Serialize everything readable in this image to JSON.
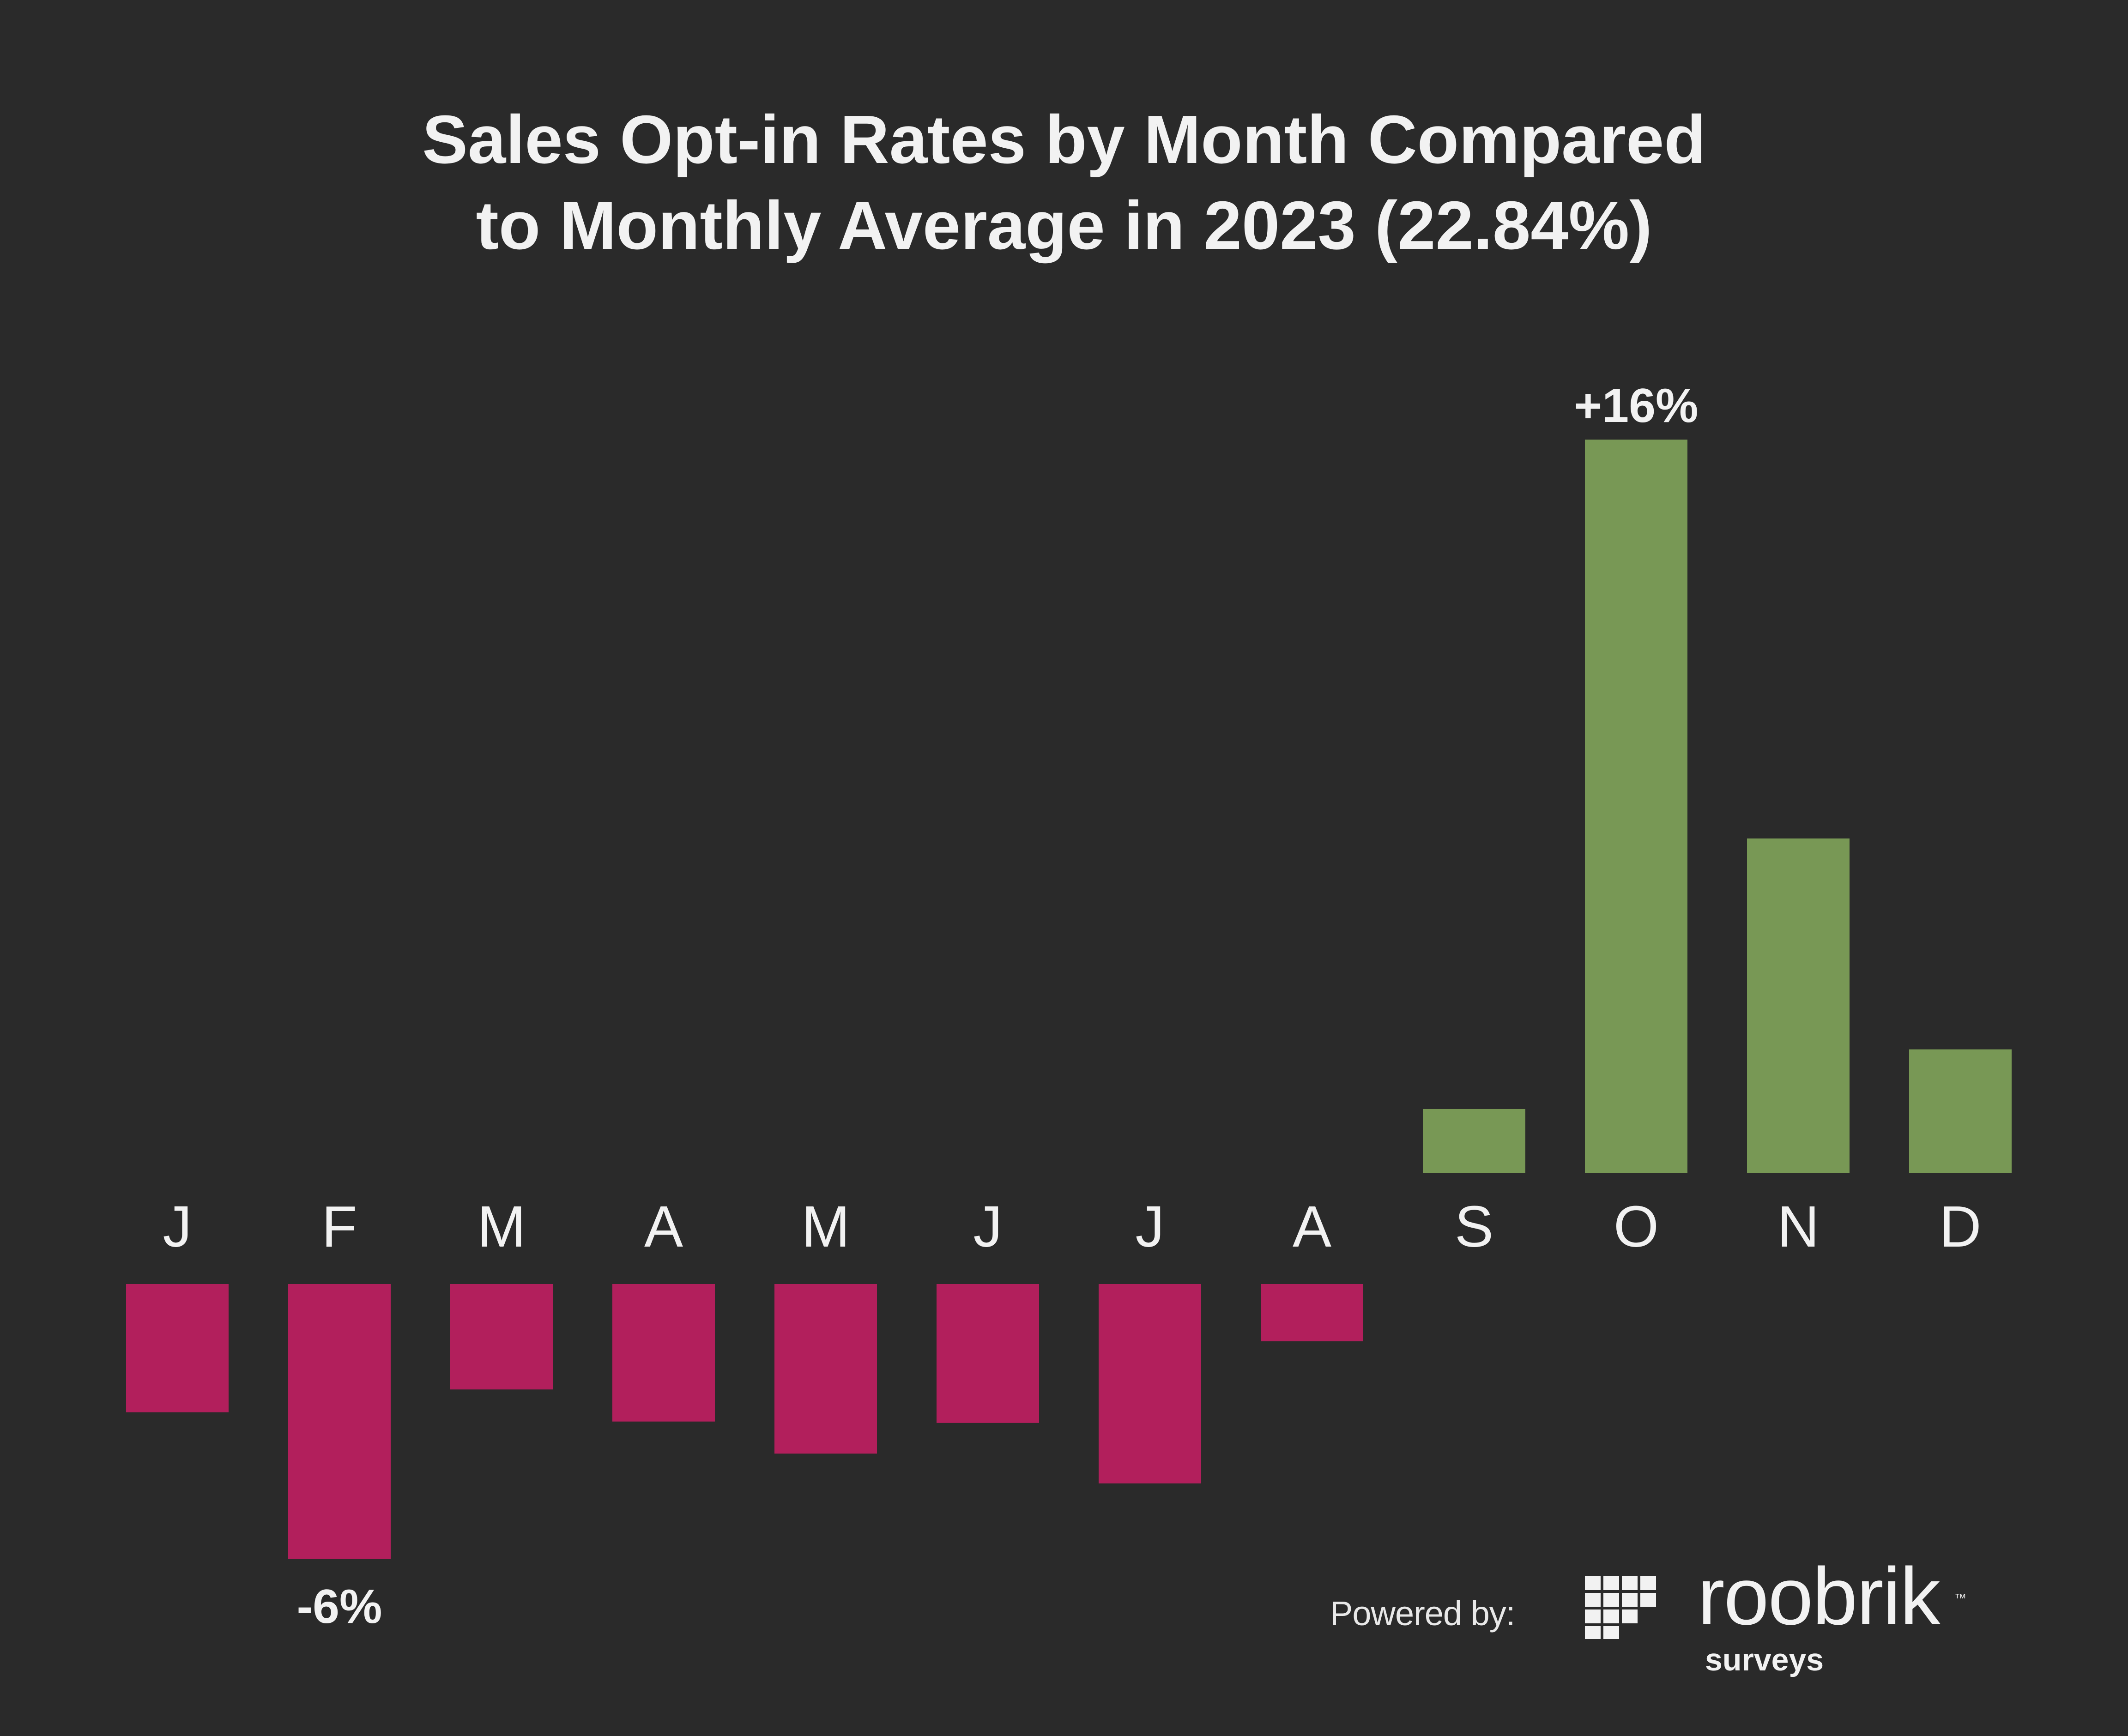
{
  "title_line1": "Sales Opt-in Rates by Month Compared",
  "title_line2": "to Monthly Average in 2023 (22.84%)",
  "footer": {
    "powered_by": "Powered by:",
    "brand": "roobrik",
    "brand_tm": "™",
    "brand_sub": "surveys"
  },
  "colors": {
    "background": "#2a2a2a",
    "positive": "#789855",
    "negative": "#b21f5c",
    "text": "#f2f2f2"
  },
  "chart_data": {
    "type": "bar",
    "title": "Sales Opt-in Rates by Month Compared to Monthly Average in 2023 (22.84%)",
    "categories": [
      "J",
      "F",
      "M",
      "A",
      "M",
      "J",
      "J",
      "A",
      "S",
      "O",
      "N",
      "D"
    ],
    "values": [
      -2.8,
      -6,
      -2.3,
      -3,
      -3.7,
      -3.03,
      -4.35,
      -1.25,
      1.4,
      16,
      7.3,
      2.7
    ],
    "unit": "%",
    "data_labels": [
      {
        "index": 1,
        "text": "-6%"
      },
      {
        "index": 9,
        "text": "+16%"
      }
    ],
    "grid": false,
    "legend": "none"
  }
}
